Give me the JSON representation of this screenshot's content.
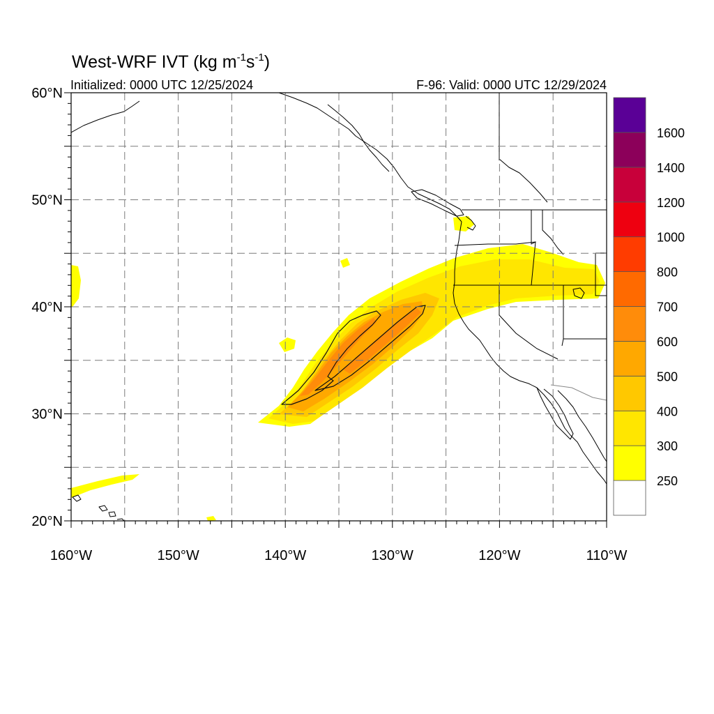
{
  "title": {
    "main": "West-WRF IVT (kg m",
    "sup1": "-1",
    "mid": "s",
    "sup2": "-1",
    "close": ")"
  },
  "subtitle_left": "Initialized: 0000 UTC 12/25/2024",
  "subtitle_right": "F-96: Valid: 0000 UTC 12/29/2024",
  "map": {
    "lon_range": [
      -160,
      -110
    ],
    "lat_range": [
      20,
      60
    ],
    "lat_tick_labels": [
      {
        "value": 60,
        "text": "60°N"
      },
      {
        "value": 50,
        "text": "50°N"
      },
      {
        "value": 40,
        "text": "40°N"
      },
      {
        "value": 30,
        "text": "30°N"
      },
      {
        "value": 20,
        "text": "20°N"
      }
    ],
    "lon_tick_labels": [
      {
        "value": -160,
        "text": "160°W"
      },
      {
        "value": -150,
        "text": "150°W"
      },
      {
        "value": -140,
        "text": "140°W"
      },
      {
        "value": -130,
        "text": "130°W"
      },
      {
        "value": -120,
        "text": "120°W"
      },
      {
        "value": -110,
        "text": "110°W"
      }
    ],
    "grid_lat": [
      25,
      30,
      35,
      40,
      45,
      50,
      55
    ],
    "grid_lon": [
      -155,
      -150,
      -145,
      -140,
      -135,
      -130,
      -125,
      -120,
      -115
    ]
  },
  "colorbar": {
    "colors": [
      "#ffffff",
      "#ffff00",
      "#ffe600",
      "#ffc800",
      "#ffa800",
      "#ff8c0a",
      "#ff6a00",
      "#ff3c00",
      "#ee0010",
      "#c8003a",
      "#8c005a",
      "#5a0096"
    ],
    "labels": [
      "250",
      "300",
      "400",
      "500",
      "600",
      "700",
      "800",
      "1000",
      "1200",
      "1400",
      "1600"
    ]
  }
}
